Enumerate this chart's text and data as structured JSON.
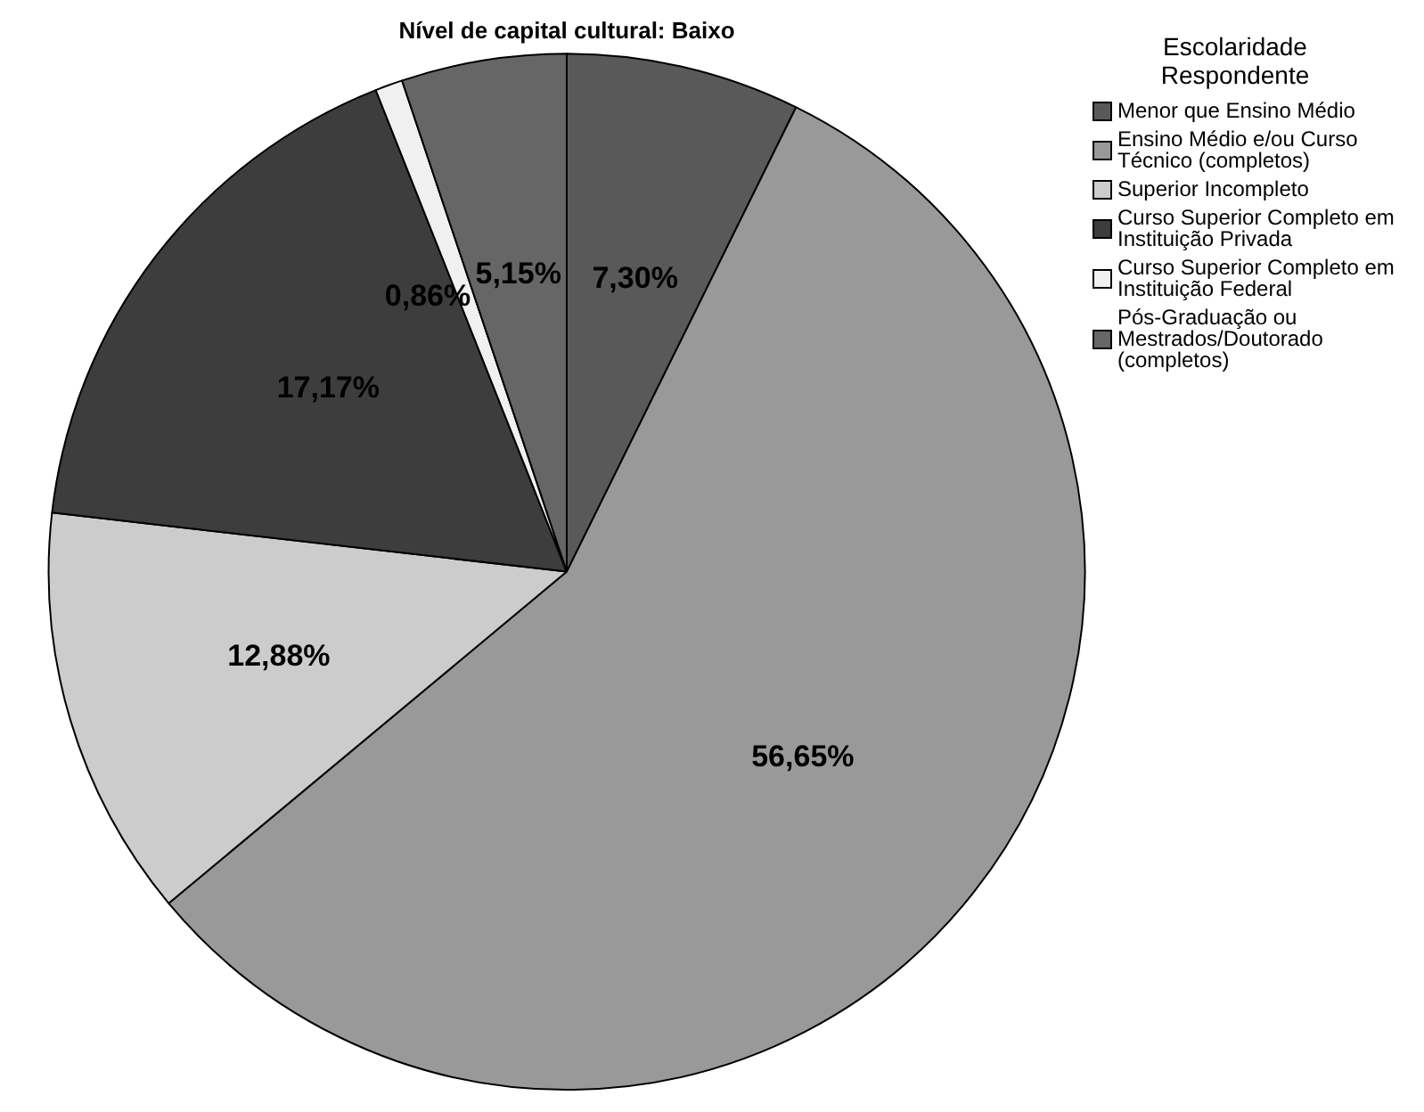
{
  "chart_data": {
    "type": "pie",
    "title": "Nível de capital cultural: Baixo",
    "legend_title": "Escolaridade Respondente",
    "legend": "top right",
    "categories": [
      "Menor que Ensino Médio",
      "Ensino Médio e/ou Curso Técnico (completos)",
      "Superior Incompleto",
      "Curso Superior Completo em Instituição Privada",
      "Curso Superior Completo em Instituição Federal",
      "Pós-Graduação ou Mestrados/Doutorado (completos)"
    ],
    "values": [
      7.3,
      56.65,
      12.88,
      17.17,
      0.86,
      5.15
    ],
    "value_labels": [
      "7,30%",
      "56,65%",
      "12,88%",
      "17,17%",
      "0,86%",
      "5,15%"
    ],
    "colors": [
      "#595959",
      "#999999",
      "#cccccc",
      "#3d3d3d",
      "#f0f0f0",
      "#666666"
    ]
  }
}
